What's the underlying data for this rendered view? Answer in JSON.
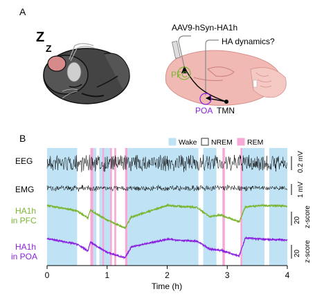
{
  "panel_a": {
    "letter": "A",
    "sleep_symbol_1": "Z",
    "sleep_symbol_2": "Z",
    "virus_label": "AAV9-hSyn-HA1h",
    "question_label": "HA dynamics?",
    "region_pfc": "PFC",
    "region_poa": "POA",
    "region_tmn": "TMN"
  },
  "panel_b": {
    "letter": "B",
    "legend": [
      {
        "label": "Wake",
        "color": "#bfe3f5"
      },
      {
        "label": "NREM",
        "color": "#ffffff"
      },
      {
        "label": "REM",
        "color": "#f7a8d6"
      }
    ],
    "row_labels": {
      "eeg": "EEG",
      "emg": "EMG",
      "pfc_line1": "HA1h",
      "pfc_line2": "in PFC",
      "poa_line1": "HA1h",
      "poa_line2": "in POA"
    },
    "scale_bars": {
      "eeg_value": "0.2 mV",
      "emg_value": "1 mV",
      "pfc_value": "20",
      "pfc_unit": "z-score",
      "poa_value": "20",
      "poa_unit": "z-score"
    },
    "colors": {
      "pfc": "#7ab52f",
      "poa": "#8a1fe0",
      "wake": "#bfe3f5",
      "rem": "#f7a8d6"
    }
  },
  "chart_data": {
    "type": "line",
    "x_ticks": [
      "0",
      "1",
      "2",
      "3",
      "4"
    ],
    "xlabel": "Time (h)",
    "xlim": [
      0,
      4
    ],
    "series": [
      {
        "name": "HA1h in PFC",
        "x": [
          0,
          0.5,
          0.68,
          0.72,
          1.0,
          1.3,
          1.4,
          2.0,
          2.5,
          2.7,
          2.9,
          3.2,
          3.3,
          3.6,
          4.0
        ],
        "values": [
          33,
          25,
          15,
          26,
          12,
          0,
          16,
          33,
          30,
          17,
          19,
          9,
          31,
          33,
          32
        ]
      },
      {
        "name": "HA1h in POA",
        "x": [
          0,
          0.5,
          0.68,
          0.72,
          1.0,
          1.3,
          1.4,
          2.0,
          2.5,
          2.7,
          2.9,
          3.2,
          3.3,
          3.6,
          4.0
        ],
        "values": [
          32,
          24,
          14,
          27,
          12,
          4,
          20,
          31,
          28,
          17,
          15,
          7,
          33,
          31,
          30
        ]
      }
    ],
    "state_segments": [
      {
        "state": "Wake",
        "start": 0,
        "end": 0.5
      },
      {
        "state": "NREM",
        "start": 0.5,
        "end": 0.72
      },
      {
        "state": "REM",
        "start": 0.72,
        "end": 0.77
      },
      {
        "state": "Wake",
        "start": 0.77,
        "end": 0.82
      },
      {
        "state": "NREM",
        "start": 0.82,
        "end": 0.87
      },
      {
        "state": "Wake",
        "start": 0.87,
        "end": 0.92
      },
      {
        "state": "REM",
        "start": 0.92,
        "end": 0.95
      },
      {
        "state": "Wake",
        "start": 0.95,
        "end": 1.05
      },
      {
        "state": "REM",
        "start": 1.05,
        "end": 1.08
      },
      {
        "state": "NREM",
        "start": 1.08,
        "end": 1.12
      },
      {
        "state": "REM",
        "start": 1.12,
        "end": 1.15
      },
      {
        "state": "NREM",
        "start": 1.15,
        "end": 1.3
      },
      {
        "state": "REM",
        "start": 1.3,
        "end": 1.34
      },
      {
        "state": "Wake",
        "start": 1.34,
        "end": 2.0
      },
      {
        "state": "Wake",
        "start": 2.0,
        "end": 2.52
      },
      {
        "state": "NREM",
        "start": 2.52,
        "end": 2.6
      },
      {
        "state": "Wake",
        "start": 2.6,
        "end": 2.82
      },
      {
        "state": "NREM",
        "start": 2.82,
        "end": 2.92
      },
      {
        "state": "REM",
        "start": 2.92,
        "end": 2.96
      },
      {
        "state": "NREM",
        "start": 2.96,
        "end": 3.22
      },
      {
        "state": "REM",
        "start": 3.22,
        "end": 3.25
      },
      {
        "state": "Wake",
        "start": 3.25,
        "end": 3.62
      },
      {
        "state": "NREM",
        "start": 3.62,
        "end": 3.7
      },
      {
        "state": "Wake",
        "start": 3.7,
        "end": 4.0
      }
    ]
  }
}
